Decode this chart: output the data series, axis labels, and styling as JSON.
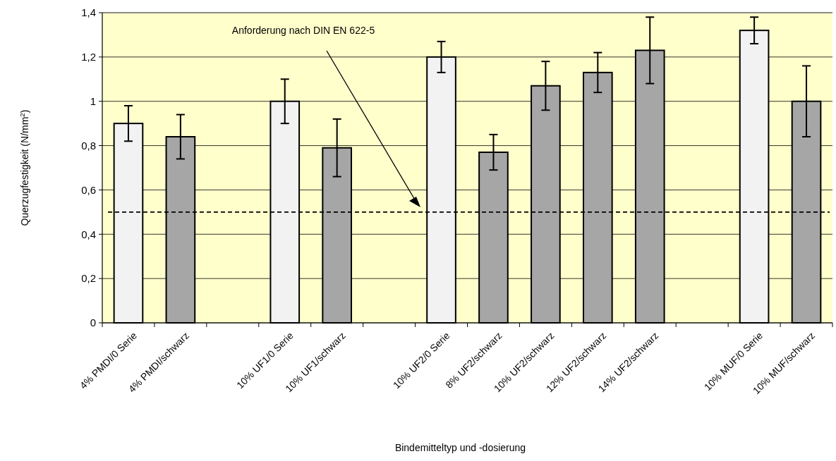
{
  "chart_data": {
    "type": "bar",
    "xlabel": "Bindemitteltyp und -dosierung",
    "ylabel": "Querzugfestigkeit (N/mm$^{2}$)",
    "categories": [
      "4% PMDI/0 Serie",
      "4% PMDI/schwarz",
      null,
      "10% UF1/0 Serie",
      "10% UF1/schwarz",
      null,
      "10% UF2/0 Serie",
      "8% UF2/schwarz",
      "10% UF2/schwarz",
      "12% UF2/schwarz",
      "14% UF2/schwarz",
      null,
      "10% MUF/0 Serie",
      "10% MUF/schwarz"
    ],
    "values": [
      0.9,
      0.84,
      null,
      1.0,
      0.79,
      null,
      1.2,
      0.77,
      1.07,
      1.13,
      1.23,
      null,
      1.32,
      1.0
    ],
    "colors": [
      "#f2f2f2",
      "#a6a6a6",
      null,
      "#f2f2f2",
      "#a6a6a6",
      null,
      "#f2f2f2",
      "#a6a6a6",
      "#a6a6a6",
      "#a6a6a6",
      "#a6a6a6",
      null,
      "#f2f2f2",
      "#a6a6a6"
    ],
    "errors": [
      [
        0.82,
        0.98
      ],
      [
        0.74,
        0.94
      ],
      null,
      [
        0.9,
        1.1
      ],
      [
        0.66,
        0.92
      ],
      null,
      [
        1.13,
        1.27
      ],
      [
        0.69,
        0.85
      ],
      [
        0.96,
        1.18
      ],
      [
        1.04,
        1.22
      ],
      [
        1.08,
        1.38
      ],
      null,
      [
        1.26,
        1.38
      ],
      [
        0.84,
        1.16
      ]
    ],
    "ylim": [
      0,
      1.4
    ],
    "yticks": [
      0,
      {
        "value": 0.2,
        "label": "0,2"
      },
      {
        "value": 0.4,
        "label": "0,4"
      },
      {
        "value": 0.6,
        "label": "0,6"
      },
      {
        "value": 0.8,
        "label": "0,8"
      },
      1,
      {
        "value": 1.2,
        "label": "1,2"
      },
      {
        "value": 1.4,
        "label": "1,4"
      }
    ],
    "grid": "y",
    "ref_lines": [
      {
        "axis": "y",
        "value": 0.5,
        "label": "Anforderung nach DIN EN 622-5",
        "color": "#000000",
        "line_style": "dashed"
      }
    ]
  }
}
